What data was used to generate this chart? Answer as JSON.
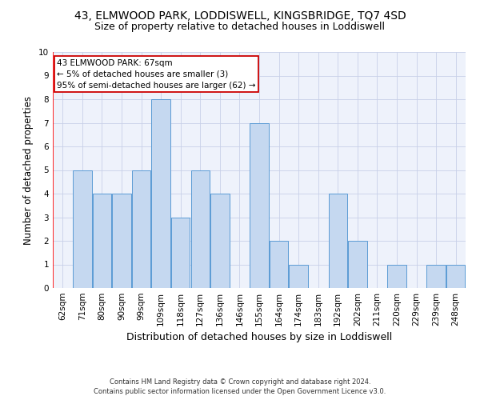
{
  "title": "43, ELMWOOD PARK, LODDISWELL, KINGSBRIDGE, TQ7 4SD",
  "subtitle": "Size of property relative to detached houses in Loddiswell",
  "xlabel": "Distribution of detached houses by size in Loddiswell",
  "ylabel": "Number of detached properties",
  "categories": [
    "62sqm",
    "71sqm",
    "80sqm",
    "90sqm",
    "99sqm",
    "109sqm",
    "118sqm",
    "127sqm",
    "136sqm",
    "146sqm",
    "155sqm",
    "164sqm",
    "174sqm",
    "183sqm",
    "192sqm",
    "202sqm",
    "211sqm",
    "220sqm",
    "229sqm",
    "239sqm",
    "248sqm"
  ],
  "values": [
    0,
    5,
    4,
    4,
    5,
    8,
    3,
    5,
    4,
    0,
    7,
    2,
    1,
    0,
    4,
    2,
    0,
    1,
    0,
    1,
    1
  ],
  "bar_color": "#c5d8f0",
  "bar_edge_color": "#5b9bd5",
  "grid_color": "#c8d0e8",
  "background_color": "#eef2fb",
  "ylim": [
    0,
    10
  ],
  "annotation_text": "43 ELMWOOD PARK: 67sqm\n← 5% of detached houses are smaller (3)\n95% of semi-detached houses are larger (62) →",
  "annotation_box_color": "#ffffff",
  "annotation_box_edge": "#cc0000",
  "footnote1": "Contains HM Land Registry data © Crown copyright and database right 2024.",
  "footnote2": "Contains public sector information licensed under the Open Government Licence v3.0.",
  "title_fontsize": 10,
  "subtitle_fontsize": 9,
  "xlabel_fontsize": 9,
  "ylabel_fontsize": 8.5,
  "tick_fontsize": 7.5,
  "annotation_fontsize": 7.5,
  "footnote_fontsize": 6
}
